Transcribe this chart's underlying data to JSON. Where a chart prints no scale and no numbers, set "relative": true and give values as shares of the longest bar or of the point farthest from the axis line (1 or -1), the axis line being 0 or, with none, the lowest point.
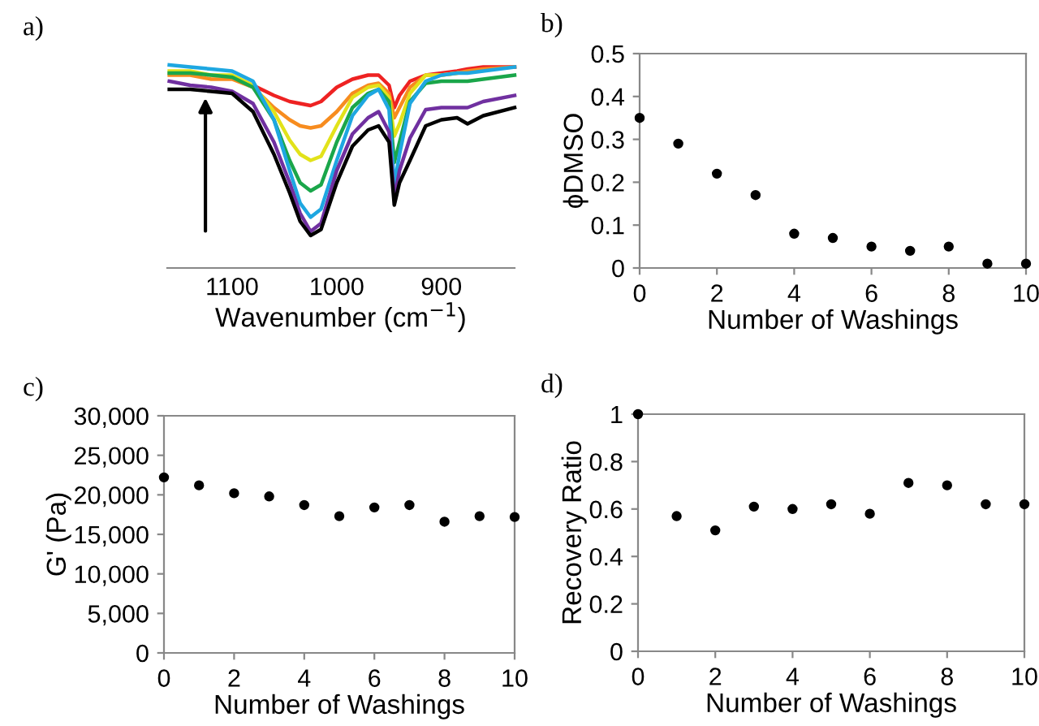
{
  "chart_data": [
    {
      "type": "line",
      "title": "a)",
      "xlabel": "Wavenumber (cm$^{−1}$)",
      "relative": true,
      "xlim": [
        1162,
        830
      ],
      "xticks": [
        1100,
        1000,
        900
      ],
      "tick_labels": "x",
      "line_style": "solid",
      "x": [
        1160,
        1140,
        1120,
        1100,
        1080,
        1060,
        1045,
        1035,
        1025,
        1015,
        1000,
        985,
        970,
        960,
        950,
        945,
        940,
        930,
        915,
        900,
        885,
        875,
        860,
        830
      ],
      "series": [
        {
          "color": "#ee2222",
          "values": [
            null,
            null,
            null,
            0.94,
            0.9,
            0.85,
            0.82,
            0.81,
            0.8,
            0.82,
            0.89,
            0.93,
            0.95,
            0.95,
            0.9,
            0.79,
            0.85,
            0.92,
            0.95,
            0.96,
            0.97,
            0.98,
            0.99,
            0.99
          ]
        },
        {
          "color": "#f78c1f",
          "values": [
            0.95,
            0.95,
            0.93,
            0.93,
            0.89,
            0.79,
            0.73,
            0.7,
            0.69,
            0.7,
            0.77,
            0.86,
            0.9,
            0.91,
            0.86,
            0.74,
            0.79,
            0.89,
            0.95,
            0.95,
            0.96,
            0.97,
            0.98,
            0.99
          ]
        },
        {
          "color": "#e2e21a",
          "values": [
            0.97,
            0.97,
            0.95,
            0.95,
            0.9,
            0.77,
            0.63,
            0.56,
            0.53,
            0.55,
            0.7,
            0.84,
            0.89,
            0.9,
            0.84,
            0.65,
            0.71,
            0.86,
            0.95,
            0.95,
            0.96,
            null,
            null,
            null
          ]
        },
        {
          "color": "#1aa64a",
          "values": [
            0.96,
            0.96,
            0.95,
            0.94,
            0.89,
            0.73,
            0.53,
            0.42,
            0.38,
            0.41,
            0.62,
            0.79,
            0.86,
            0.88,
            0.82,
            0.52,
            0.62,
            0.82,
            0.91,
            0.92,
            0.92,
            0.92,
            0.93,
            0.95
          ]
        },
        {
          "color": "#1ea7e1",
          "values": [
            1.0,
            0.99,
            0.98,
            0.97,
            0.92,
            0.73,
            0.48,
            0.32,
            0.25,
            0.29,
            0.53,
            0.75,
            0.85,
            0.88,
            0.78,
            0.41,
            0.56,
            0.81,
            0.92,
            0.95,
            0.96,
            0.96,
            0.97,
            0.99
          ]
        },
        {
          "color": "#7030a0",
          "values": [
            0.92,
            0.9,
            0.89,
            0.87,
            0.81,
            0.62,
            0.42,
            0.27,
            0.18,
            0.22,
            0.48,
            0.66,
            0.74,
            0.77,
            0.67,
            0.34,
            0.48,
            0.64,
            0.78,
            0.79,
            0.79,
            0.79,
            0.82,
            0.85
          ]
        },
        {
          "color": "#000000",
          "values": [
            0.88,
            0.88,
            0.87,
            0.86,
            0.77,
            0.56,
            0.37,
            0.23,
            0.16,
            0.19,
            0.42,
            0.6,
            0.68,
            0.7,
            0.62,
            0.31,
            0.42,
            0.53,
            0.7,
            0.73,
            0.74,
            0.71,
            0.75,
            0.79
          ]
        }
      ]
    },
    {
      "type": "scatter",
      "title": "b)",
      "xlabel": "Number of Washings",
      "ylabel": "ϕDMSO",
      "marker": "circle",
      "grid": false,
      "xlim": [
        0,
        10
      ],
      "xticks": [
        0,
        2,
        4,
        6,
        8,
        10
      ],
      "ylim": [
        0,
        0.5
      ],
      "yticks": [
        0,
        0.1,
        0.2,
        0.3,
        0.4,
        0.5
      ],
      "x": [
        0,
        1,
        2,
        3,
        4,
        5,
        6,
        7,
        8,
        9,
        10
      ],
      "series": [
        {
          "color": "#000000",
          "values": [
            0.35,
            0.29,
            0.22,
            0.17,
            0.08,
            0.07,
            0.05,
            0.04,
            0.05,
            0.01,
            0.01
          ]
        }
      ]
    },
    {
      "type": "scatter",
      "title": "c)",
      "xlabel": "Number of Washings",
      "ylabel": "G' (Pa)",
      "marker": "circle",
      "grid": false,
      "xlim": [
        0,
        10
      ],
      "xticks": [
        0,
        2,
        4,
        6,
        8,
        10
      ],
      "ylim": [
        0,
        30000
      ],
      "yticks": [
        0,
        {
          "value": 5000,
          "label": "5,000"
        },
        {
          "value": 10000,
          "label": "10,000"
        },
        {
          "value": 15000,
          "label": "15,000"
        },
        {
          "value": 20000,
          "label": "20,000"
        },
        {
          "value": 25000,
          "label": "25,000"
        },
        {
          "value": 30000,
          "label": "30,000"
        }
      ],
      "x": [
        0,
        1,
        2,
        3,
        4,
        5,
        6,
        7,
        8,
        9,
        10
      ],
      "series": [
        {
          "color": "#000000",
          "values": [
            22200,
            21200,
            20200,
            19800,
            18700,
            17300,
            18400,
            18700,
            16600,
            17300,
            17200
          ]
        }
      ]
    },
    {
      "type": "scatter",
      "title": "d)",
      "xlabel": "Number of Washings",
      "ylabel": "Recovery Ratio",
      "marker": "circle",
      "grid": false,
      "xlim": [
        0,
        10
      ],
      "xticks": [
        0,
        2,
        4,
        6,
        8,
        10
      ],
      "ylim": [
        0,
        1
      ],
      "yticks": [
        0,
        0.2,
        0.4,
        0.6,
        0.8,
        1
      ],
      "x": [
        0,
        1,
        2,
        3,
        4,
        5,
        6,
        7,
        8,
        9,
        10
      ],
      "series": [
        {
          "color": "#000000",
          "values": [
            1.0,
            0.57,
            0.51,
            0.61,
            0.6,
            0.62,
            0.58,
            0.71,
            0.7,
            0.62,
            0.62
          ]
        }
      ]
    }
  ]
}
